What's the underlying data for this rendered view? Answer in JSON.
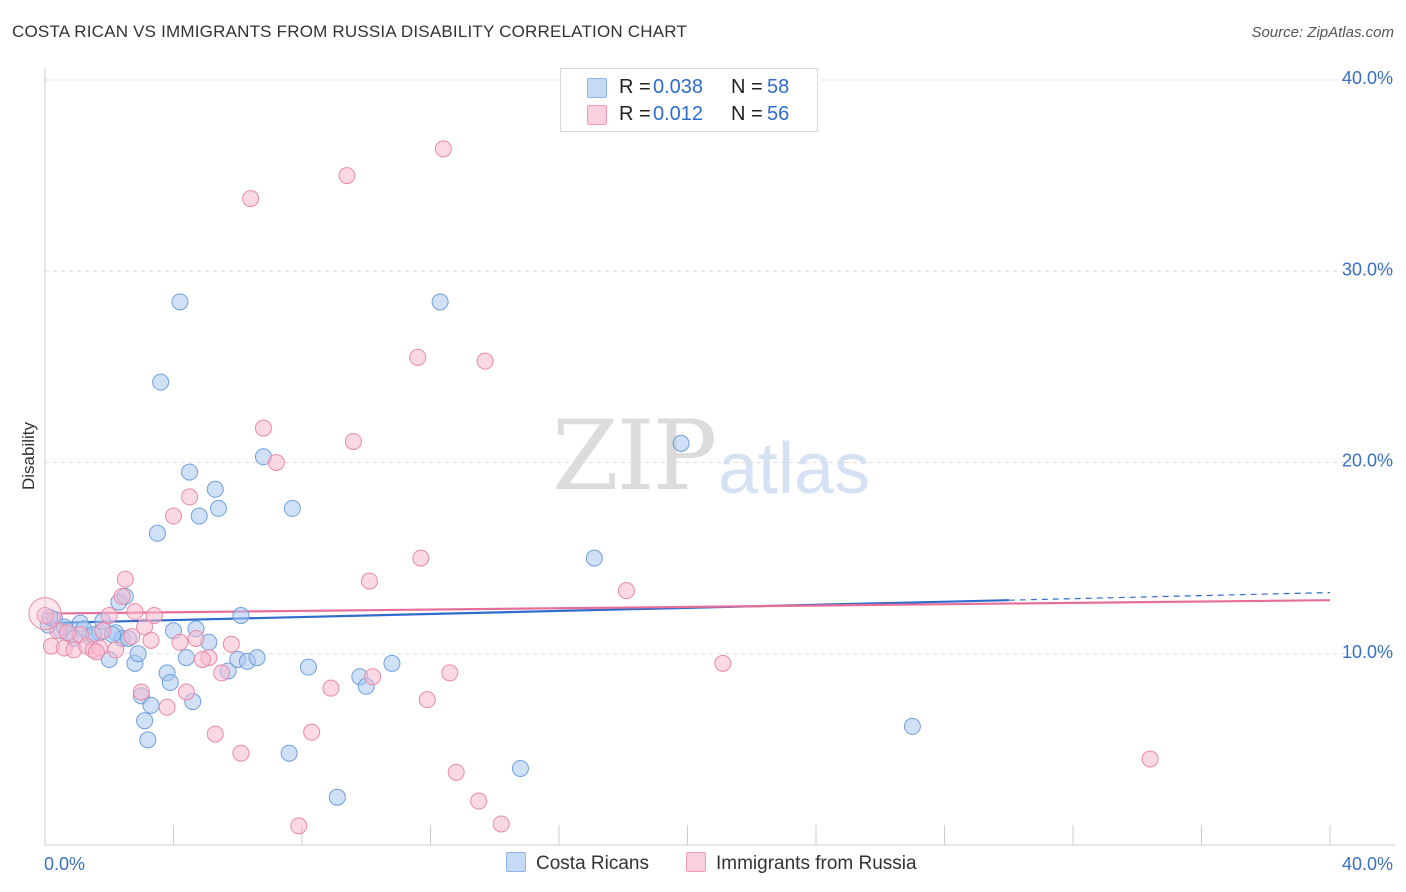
{
  "header": {
    "title": "COSTA RICAN VS IMMIGRANTS FROM RUSSIA DISABILITY CORRELATION CHART",
    "source": "Source: ZipAtlas.com"
  },
  "watermark": {
    "zip": "ZIP",
    "atlas": "atlas"
  },
  "legend": {
    "rows": [
      {
        "r_label": "R =",
        "r_value": "0.038",
        "n_label": "N =",
        "n_value": "58",
        "color": "#a9c8f0"
      },
      {
        "r_label": "R =",
        "r_value": "0.012",
        "n_label": "N =",
        "n_value": "56",
        "color": "#f7b9cd"
      }
    ]
  },
  "bottom_legend": [
    {
      "label": "Costa Ricans",
      "color": "#a9c8f0"
    },
    {
      "label": "Immigrants from Russia",
      "color": "#f7b9cd"
    }
  ],
  "chart_data": {
    "type": "scatter",
    "title": "COSTA RICAN VS IMMIGRANTS FROM RUSSIA DISABILITY CORRELATION CHART",
    "ylabel": "Disability",
    "xlabel": "",
    "xlim": [
      0,
      40
    ],
    "ylim": [
      0,
      40
    ],
    "y_ticks": [
      {
        "value": 10,
        "label": "10.0%"
      },
      {
        "value": 20,
        "label": "20.0%"
      },
      {
        "value": 30,
        "label": "30.0%"
      },
      {
        "value": 40,
        "label": "40.0%"
      }
    ],
    "x_tick_labels": [
      {
        "value": 0,
        "label": "0.0%"
      },
      {
        "value": 40,
        "label": "40.0%"
      }
    ],
    "x_minor_ticks": [
      4,
      8,
      12,
      16,
      20,
      24,
      28,
      32,
      36,
      40
    ],
    "grid": true,
    "series": [
      {
        "name": "Costa Ricans",
        "color": "#a9c8f0",
        "stroke": "#6f9fdc",
        "trend": {
          "x0": 0,
          "y0": 11.6,
          "x1": 30,
          "y1": 12.8,
          "dash_to_x": 40,
          "dash_to_y": 13.2,
          "color": "#2f6ccc"
        },
        "points": [
          [
            0.1,
            11.5
          ],
          [
            0.3,
            11.8
          ],
          [
            0.5,
            11.2
          ],
          [
            0.8,
            11.0
          ],
          [
            1.1,
            11.6
          ],
          [
            1.4,
            10.9
          ],
          [
            1.7,
            11.1
          ],
          [
            1.8,
            11.7
          ],
          [
            2.0,
            9.7
          ],
          [
            2.2,
            11.1
          ],
          [
            2.3,
            12.7
          ],
          [
            2.5,
            13.0
          ],
          [
            2.4,
            10.8
          ],
          [
            2.6,
            10.8
          ],
          [
            2.8,
            9.5
          ],
          [
            2.9,
            10.0
          ],
          [
            3.0,
            7.8
          ],
          [
            3.1,
            6.5
          ],
          [
            3.2,
            5.5
          ],
          [
            3.5,
            16.3
          ],
          [
            3.6,
            24.2
          ],
          [
            3.8,
            9.0
          ],
          [
            3.9,
            8.5
          ],
          [
            4.0,
            11.2
          ],
          [
            4.2,
            28.4
          ],
          [
            4.4,
            9.8
          ],
          [
            4.5,
            19.5
          ],
          [
            4.6,
            7.5
          ],
          [
            4.8,
            17.2
          ],
          [
            5.1,
            10.6
          ],
          [
            5.3,
            18.6
          ],
          [
            5.4,
            17.6
          ],
          [
            5.7,
            9.1
          ],
          [
            6.0,
            9.7
          ],
          [
            6.1,
            12.0
          ],
          [
            6.3,
            9.6
          ],
          [
            6.6,
            9.8
          ],
          [
            6.8,
            20.3
          ],
          [
            7.6,
            4.8
          ],
          [
            7.7,
            17.6
          ],
          [
            8.2,
            9.3
          ],
          [
            9.1,
            2.5
          ],
          [
            9.8,
            8.8
          ],
          [
            10.0,
            8.3
          ],
          [
            10.8,
            9.5
          ],
          [
            12.3,
            28.4
          ],
          [
            14.8,
            4.0
          ],
          [
            17.1,
            15.0
          ],
          [
            19.8,
            21.0
          ],
          [
            27.0,
            6.2
          ],
          [
            0.15,
            11.9
          ],
          [
            0.6,
            11.4
          ],
          [
            1.2,
            11.3
          ],
          [
            2.1,
            11.0
          ],
          [
            3.3,
            7.3
          ],
          [
            4.7,
            11.3
          ],
          [
            1.5,
            11.0
          ],
          [
            0.9,
            10.8
          ]
        ]
      },
      {
        "name": "Immigrants from Russia",
        "color": "#f7b9cd",
        "stroke": "#e98aa8",
        "trend": {
          "x0": 0,
          "y0": 12.1,
          "x1": 40,
          "y1": 12.8,
          "color": "#e66f9a"
        },
        "points": [
          [
            0.0,
            12.0
          ],
          [
            0.2,
            10.4
          ],
          [
            0.4,
            11.2
          ],
          [
            0.6,
            10.3
          ],
          [
            0.9,
            10.2
          ],
          [
            1.1,
            11.0
          ],
          [
            1.3,
            10.4
          ],
          [
            1.5,
            10.2
          ],
          [
            1.7,
            10.3
          ],
          [
            1.8,
            11.2
          ],
          [
            2.0,
            12.0
          ],
          [
            2.2,
            10.2
          ],
          [
            2.4,
            13.0
          ],
          [
            2.5,
            13.9
          ],
          [
            2.7,
            10.9
          ],
          [
            2.8,
            12.2
          ],
          [
            3.0,
            8.0
          ],
          [
            3.1,
            11.4
          ],
          [
            3.3,
            10.7
          ],
          [
            3.4,
            12.0
          ],
          [
            3.8,
            7.2
          ],
          [
            4.0,
            17.2
          ],
          [
            4.2,
            10.6
          ],
          [
            4.4,
            8.0
          ],
          [
            4.5,
            18.2
          ],
          [
            4.7,
            10.8
          ],
          [
            5.1,
            9.8
          ],
          [
            5.3,
            5.8
          ],
          [
            5.5,
            9.0
          ],
          [
            5.8,
            10.5
          ],
          [
            6.1,
            4.8
          ],
          [
            6.4,
            33.8
          ],
          [
            6.8,
            21.8
          ],
          [
            7.2,
            20.0
          ],
          [
            7.9,
            1.0
          ],
          [
            8.3,
            5.9
          ],
          [
            8.9,
            8.2
          ],
          [
            9.4,
            35.0
          ],
          [
            9.6,
            21.1
          ],
          [
            10.1,
            13.8
          ],
          [
            10.2,
            8.8
          ],
          [
            11.6,
            25.5
          ],
          [
            11.9,
            7.6
          ],
          [
            11.7,
            15.0
          ],
          [
            12.4,
            36.4
          ],
          [
            12.6,
            9.0
          ],
          [
            12.8,
            3.8
          ],
          [
            13.5,
            2.3
          ],
          [
            13.7,
            25.3
          ],
          [
            14.2,
            1.1
          ],
          [
            18.1,
            13.3
          ],
          [
            21.1,
            9.5
          ],
          [
            34.4,
            4.5
          ],
          [
            0.7,
            11.1
          ],
          [
            1.6,
            10.1
          ],
          [
            4.9,
            9.7
          ]
        ]
      }
    ]
  }
}
